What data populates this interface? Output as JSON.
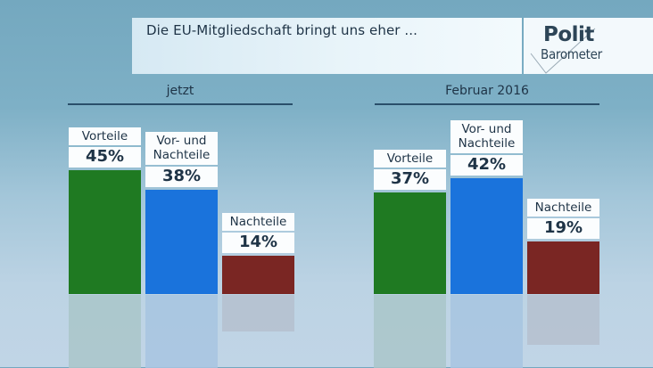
{
  "header": {
    "title": "Die EU-Mitgliedschaft bringt uns eher ...",
    "logo_top": "Polit",
    "logo_bottom": "Barometer"
  },
  "chart_data": [
    {
      "type": "bar",
      "title": "jetzt",
      "categories": [
        "Vorteile",
        "Vor- und Nachteile",
        "Nachteile"
      ],
      "values": [
        45,
        38,
        14
      ],
      "value_labels": [
        "45%",
        "38%",
        "14%"
      ],
      "colors": [
        "#1f7a22",
        "#1a73dc",
        "#7a2623"
      ],
      "ylim": [
        0,
        50
      ],
      "unit": "%"
    },
    {
      "type": "bar",
      "title": "Februar 2016",
      "categories": [
        "Vorteile",
        "Vor- und Nachteile",
        "Nachteile"
      ],
      "values": [
        37,
        42,
        19
      ],
      "value_labels": [
        "37%",
        "42%",
        "19%"
      ],
      "colors": [
        "#1f7a22",
        "#1a73dc",
        "#7a2623"
      ],
      "ylim": [
        0,
        50
      ],
      "unit": "%"
    }
  ],
  "label_lines": {
    "Vorteile": [
      "Vorteile"
    ],
    "Vor- und Nachteile": [
      "Vor- und",
      "Nachteile"
    ],
    "Nachteile": [
      "Nachteile"
    ]
  },
  "reflect_colors": [
    "#a9c5c9",
    "#a7c4e0",
    "#b5bfcf"
  ]
}
